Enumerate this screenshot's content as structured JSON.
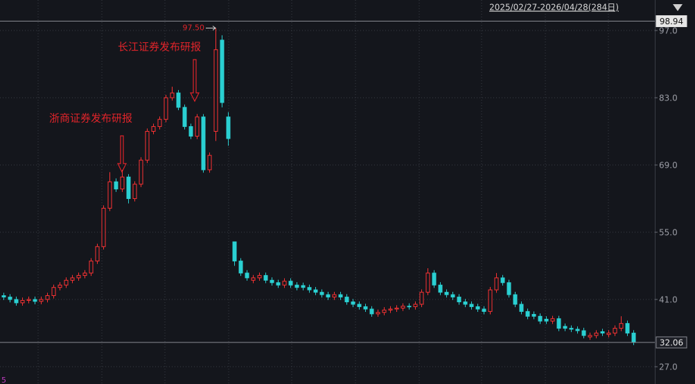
{
  "chart_data": {
    "type": "candlestick",
    "date_range": "2025/02/27-2026/04/28(284日)",
    "ylim": [
      23.4,
      103.35
    ],
    "yticks": [
      {
        "value": 97,
        "label": "97.0"
      },
      {
        "value": 83,
        "label": "83.0"
      },
      {
        "value": 69,
        "label": "69.0"
      },
      {
        "value": 55,
        "label": "55.0"
      },
      {
        "value": 41,
        "label": "41.0"
      },
      {
        "value": 27,
        "label": "27.0"
      }
    ],
    "grid": true,
    "up_color": "#ff3333",
    "down_color": "#2ad0d2",
    "price_lines": [
      98.94,
      32.06
    ],
    "max_label": {
      "value": 97.5,
      "label": "97.50"
    },
    "annotations": [
      "长江证券发布研报",
      "浙商证券发布研报"
    ],
    "corner_label": "5",
    "open": [
      41.8,
      41.5,
      41.0,
      40.3,
      40.8,
      41.0,
      40.6,
      41.0,
      41.8,
      43.5,
      44.0,
      45.0,
      45.5,
      46.0,
      46.5,
      49.0,
      52.0,
      60.0,
      65.5,
      64.0,
      66.5,
      62.0,
      65.0,
      70.0,
      76.0,
      77.0,
      78.5,
      83.0,
      84.0,
      81.0,
      77.0,
      75.0,
      79.0,
      68.0,
      76.0,
      95.0,
      79.0,
      53.0,
      49.0,
      46.5,
      45.0,
      45.5,
      46.0,
      45.0,
      44.5,
      44.0,
      44.8,
      44.0,
      43.9,
      43.5,
      43.0,
      42.5,
      42.0,
      41.5,
      42.0,
      41.5,
      40.5,
      40.0,
      39.5,
      39.0,
      38.0,
      38.3,
      38.8,
      39.0,
      39.2,
      39.6,
      39.5,
      40.0,
      42.5,
      46.5,
      44.0,
      42.5,
      42.0,
      41.5,
      40.5,
      40.0,
      39.5,
      39.0,
      38.5,
      43.0,
      45.5,
      44.5,
      42.0,
      40.0,
      38.5,
      37.9,
      37.5,
      36.9,
      36.5,
      37.0,
      35.4,
      35.0,
      34.8,
      34.5,
      33.2,
      33.5,
      34.3,
      33.7,
      34.0,
      35.0,
      36.0,
      34.0
    ],
    "high": [
      42.4,
      42.1,
      41.6,
      41.4,
      41.6,
      41.6,
      41.6,
      42.4,
      44.1,
      44.6,
      45.6,
      46.1,
      46.6,
      47.1,
      49.6,
      52.6,
      60.6,
      67.5,
      66.2,
      68.0,
      67.1,
      65.6,
      70.6,
      76.6,
      77.6,
      79.1,
      83.6,
      85.3,
      84.6,
      81.6,
      77.6,
      79.6,
      79.6,
      71.6,
      97.5,
      96.0,
      80.0,
      53.0,
      49.6,
      47.1,
      46.1,
      46.6,
      46.6,
      45.6,
      45.1,
      45.4,
      45.4,
      44.6,
      44.5,
      44.1,
      43.6,
      43.1,
      42.6,
      42.6,
      42.6,
      42.1,
      41.1,
      40.6,
      40.1,
      39.6,
      38.9,
      39.4,
      39.6,
      39.8,
      40.2,
      40.2,
      40.6,
      43.1,
      47.5,
      47.1,
      44.6,
      43.1,
      42.6,
      42.1,
      41.1,
      40.6,
      40.1,
      39.6,
      43.6,
      46.5,
      46.1,
      45.1,
      42.6,
      40.6,
      39.1,
      38.5,
      38.1,
      37.5,
      37.6,
      37.6,
      36.0,
      35.6,
      35.4,
      35.1,
      34.1,
      34.6,
      34.9,
      34.6,
      35.6,
      37.5,
      36.6,
      34.6
    ],
    "low": [
      40.9,
      40.4,
      39.7,
      39.7,
      40.2,
      40.0,
      40.0,
      40.4,
      41.2,
      42.9,
      43.4,
      44.4,
      44.9,
      45.4,
      45.9,
      48.4,
      51.4,
      59.4,
      63.4,
      63.4,
      61.0,
      61.4,
      64.4,
      69.4,
      75.4,
      76.4,
      77.9,
      82.4,
      80.4,
      76.4,
      74.4,
      74.4,
      67.4,
      67.4,
      74.0,
      81.0,
      73.0,
      48.0,
      45.9,
      44.9,
      44.4,
      44.9,
      44.4,
      43.9,
      43.4,
      43.4,
      43.4,
      42.9,
      42.9,
      42.4,
      41.9,
      41.4,
      40.9,
      40.9,
      40.9,
      39.9,
      39.4,
      38.9,
      38.4,
      37.4,
      37.4,
      37.7,
      38.2,
      38.4,
      38.6,
      38.9,
      38.9,
      39.4,
      41.9,
      43.4,
      41.9,
      41.4,
      40.9,
      39.9,
      39.4,
      38.9,
      38.4,
      37.9,
      37.9,
      42.4,
      43.9,
      41.4,
      39.4,
      37.9,
      36.9,
      36.9,
      35.9,
      35.9,
      35.9,
      34.4,
      34.4,
      34.2,
      33.9,
      32.9,
      32.6,
      32.9,
      33.4,
      33.1,
      33.4,
      34.4,
      33.4,
      31.5
    ],
    "close": [
      41.5,
      41.0,
      40.3,
      40.8,
      41.0,
      40.6,
      41.0,
      41.8,
      43.5,
      44.0,
      45.0,
      45.5,
      46.0,
      46.5,
      49.0,
      52.0,
      60.0,
      65.5,
      64.0,
      66.5,
      62.0,
      65.0,
      70.0,
      76.0,
      77.0,
      78.5,
      83.0,
      84.0,
      81.0,
      77.0,
      75.0,
      79.0,
      68.0,
      71.0,
      93.0,
      82.0,
      74.5,
      49.0,
      46.5,
      45.5,
      45.5,
      46.0,
      45.0,
      44.5,
      44.0,
      44.8,
      44.0,
      43.5,
      43.5,
      43.0,
      42.5,
      42.0,
      41.5,
      42.0,
      41.5,
      40.5,
      40.0,
      39.5,
      39.0,
      38.0,
      38.3,
      38.8,
      39.0,
      39.2,
      39.6,
      39.5,
      40.0,
      42.5,
      46.5,
      44.0,
      42.5,
      42.0,
      41.5,
      40.5,
      40.0,
      39.5,
      39.0,
      38.5,
      43.0,
      45.5,
      44.5,
      42.0,
      40.0,
      38.5,
      37.5,
      37.5,
      36.5,
      36.5,
      37.0,
      35.0,
      35.0,
      34.8,
      34.5,
      33.5,
      33.5,
      34.0,
      34.0,
      34.0,
      35.0,
      36.0,
      34.0,
      32.06
    ]
  }
}
